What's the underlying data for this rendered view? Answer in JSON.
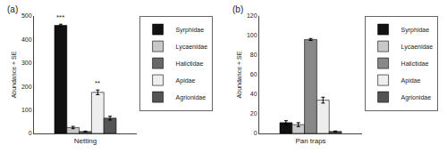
{
  "chart_data": [
    {
      "type": "bar",
      "title": "(a)",
      "ylabel": "Abundance + SE",
      "categories": [
        "Netting"
      ],
      "series": [
        {
          "name": "Syrphidae",
          "color": "#111111",
          "values": [
            460
          ],
          "errors": [
            5
          ]
        },
        {
          "name": "Lycaenidae",
          "color": "#c8c8c8",
          "values": [
            25
          ],
          "errors": [
            5
          ]
        },
        {
          "name": "Halictidae",
          "color": "#686868",
          "values": [
            8
          ],
          "errors": [
            2
          ]
        },
        {
          "name": "Apidae",
          "color": "#eeeeee",
          "values": [
            175
          ],
          "errors": [
            10
          ]
        },
        {
          "name": "Agrionidae",
          "color": "#555555",
          "values": [
            65
          ],
          "errors": [
            8
          ]
        }
      ],
      "ylim": [
        0,
        500
      ],
      "yticks": [
        0,
        100,
        200,
        300,
        400,
        500
      ],
      "grid": false,
      "legend": "upper right",
      "annotations": [
        {
          "series": "Syrphidae",
          "category": "Netting",
          "text": "***"
        },
        {
          "series": "Apidae",
          "category": "Netting",
          "text": "**"
        }
      ]
    },
    {
      "type": "bar",
      "title": "(b)",
      "ylabel": "Abundance + SE",
      "categories": [
        "Pan traps"
      ],
      "series": [
        {
          "name": "Syrphidae",
          "color": "#111111",
          "values": [
            11
          ],
          "errors": [
            2
          ]
        },
        {
          "name": "Lycaenidae",
          "color": "#c8c8c8",
          "values": [
            9
          ],
          "errors": [
            2
          ]
        },
        {
          "name": "Halictidae",
          "color": "#888888",
          "values": [
            96
          ],
          "errors": [
            1
          ]
        },
        {
          "name": "Apidae",
          "color": "#eeeeee",
          "values": [
            34
          ],
          "errors": [
            3
          ]
        },
        {
          "name": "Agrionidae",
          "color": "#555555",
          "values": [
            2
          ],
          "errors": [
            0.5
          ]
        }
      ],
      "ylim": [
        0,
        120
      ],
      "yticks": [
        0,
        20,
        40,
        60,
        80,
        100,
        120
      ],
      "grid": false,
      "legend": "upper right"
    }
  ]
}
